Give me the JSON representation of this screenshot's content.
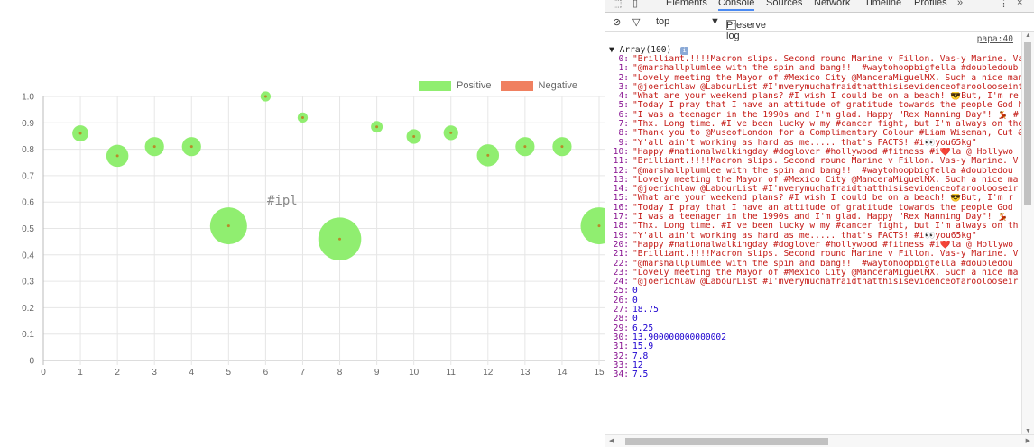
{
  "colors": {
    "positive": "#90ee70",
    "negative": "#f08060",
    "point_dot": "#b88a2a",
    "grid": "#e6e6e6",
    "annotation": "#888888"
  },
  "chart_data": {
    "type": "scatter",
    "title": "",
    "xlabel": "",
    "ylabel": "",
    "xlim": [
      0,
      15
    ],
    "ylim": [
      0,
      1.0
    ],
    "x_ticks": [
      "0",
      "1",
      "2",
      "3",
      "4",
      "5",
      "6",
      "7",
      "8",
      "9",
      "10",
      "11",
      "12",
      "13",
      "14",
      "15"
    ],
    "y_ticks": [
      "0",
      "0.1",
      "0.2",
      "0.3",
      "0.4",
      "0.5",
      "0.6",
      "0.7",
      "0.8",
      "0.9",
      "1.0"
    ],
    "grid": true,
    "legend_placement": "top-right",
    "legend": [
      {
        "name": "Positive",
        "color": "#90ee70"
      },
      {
        "name": "Negative",
        "color": "#f08060"
      }
    ],
    "annotation": {
      "text": "#ipl",
      "x": 6.45,
      "y": 0.6
    },
    "series": [
      {
        "name": "Positive",
        "points": [
          {
            "x": 1,
            "y": 0.86,
            "size": 3
          },
          {
            "x": 2,
            "y": 0.775,
            "size": 5
          },
          {
            "x": 3,
            "y": 0.81,
            "size": 4
          },
          {
            "x": 4,
            "y": 0.81,
            "size": 4
          },
          {
            "x": 5,
            "y": 0.51,
            "size": 10
          },
          {
            "x": 6,
            "y": 1.0,
            "size": 1
          },
          {
            "x": 7,
            "y": 0.92,
            "size": 1
          },
          {
            "x": 8,
            "y": 0.46,
            "size": 12
          },
          {
            "x": 9,
            "y": 0.885,
            "size": 1.5
          },
          {
            "x": 10,
            "y": 0.848,
            "size": 2.5
          },
          {
            "x": 11,
            "y": 0.862,
            "size": 2.5
          },
          {
            "x": 12,
            "y": 0.777,
            "size": 5
          },
          {
            "x": 13,
            "y": 0.81,
            "size": 4
          },
          {
            "x": 14,
            "y": 0.81,
            "size": 4
          },
          {
            "x": 15,
            "y": 0.51,
            "size": 10
          }
        ]
      },
      {
        "name": "Negative",
        "points": []
      }
    ]
  },
  "devtools": {
    "tabs": [
      "Elements",
      "Console",
      "Sources",
      "Network",
      "Timeline",
      "Profiles"
    ],
    "active_tab": "Console",
    "more_tabs_icon": "»",
    "menu_icon": "⋮",
    "close_icon": "×",
    "context_select": "top",
    "preserve_log_label": "Preserve log",
    "source_link": "papa:40",
    "array_header": "Array(100)",
    "lines": [
      {
        "i": "0:",
        "t": "\"Brilliant.!!!!Macron slips. Second round Marine v Fillon. Vas-y Marine. Va",
        "k": "str"
      },
      {
        "i": "1:",
        "t": "\"@marshallplumlee with the spin and bang!!!  #waytohoopbigfella #doubledoub",
        "k": "str"
      },
      {
        "i": "2:",
        "t": "\"Lovely meeting the Mayor of #Mexico City @ManceraMiguelMX. Such a nice man",
        "k": "str"
      },
      {
        "i": "3:",
        "t": "\"@joerichlaw @LabourList #I'mverymuchafraidthatthisisevidenceofaroolooseint",
        "k": "str"
      },
      {
        "i": "4:",
        "t": "\"What are your weekend plans? #I wish I could be on a beach! 😎But, I'm re",
        "k": "str"
      },
      {
        "i": "5:",
        "t": "\"Today I pray that I have an attitude of gratitude towards the people God h",
        "k": "str"
      },
      {
        "i": "6:",
        "t": "\"I was a teenager in the 1990s and I'm glad. Happy \"Rex Manning Day\"! 💃 #",
        "k": "str"
      },
      {
        "i": "7:",
        "t": "\"Thx. Long time. #I've been lucky w my #cancer fight, but I'm always on the",
        "k": "str"
      },
      {
        "i": "8:",
        "t": "\"Thank you to @MuseofLondon for a Complimentary Colour #Liam Wiseman, Cut &",
        "k": "str"
      },
      {
        "i": "9:",
        "t": "\"Y'all ain't working as hard as me..... that's FACTS! #i👀you65kg\"",
        "k": "str"
      },
      {
        "i": "10:",
        "t": "\"Happy #nationalwalkingday #doglover #hollywood #fitness #i❤️la @ Hollywo",
        "k": "str"
      },
      {
        "i": "11:",
        "t": "\"Brilliant.!!!!Macron slips. Second round Marine v Fillon. Vas-y Marine. V",
        "k": "str"
      },
      {
        "i": "12:",
        "t": "\"@marshallplumlee with the spin and bang!!!  #waytohoopbigfella #doubledou",
        "k": "str"
      },
      {
        "i": "13:",
        "t": "\"Lovely meeting the Mayor of #Mexico City @ManceraMiguelMX. Such a nice ma",
        "k": "str"
      },
      {
        "i": "14:",
        "t": "\"@joerichlaw @LabourList #I'mverymuchafraidthatthisisevidenceofaroolooseir",
        "k": "str"
      },
      {
        "i": "15:",
        "t": "\"What are your weekend plans? #I wish I could be on a beach! 😎But, I'm r",
        "k": "str"
      },
      {
        "i": "16:",
        "t": "\"Today I pray that I have an attitude of gratitude towards the people God",
        "k": "str"
      },
      {
        "i": "17:",
        "t": "\"I was a teenager in the 1990s and I'm glad. Happy \"Rex Manning Day\"! 💃",
        "k": "str"
      },
      {
        "i": "18:",
        "t": "\"Thx. Long time. #I've been lucky w my #cancer fight, but I'm always on th",
        "k": "str"
      },
      {
        "i": "19:",
        "t": "\"Y'all ain't working as hard as me..... that's FACTS! #i👀you65kg\"",
        "k": "str"
      },
      {
        "i": "20:",
        "t": "\"Happy #nationalwalkingday #doglover #hollywood #fitness #i❤️la @ Hollywo",
        "k": "str"
      },
      {
        "i": "21:",
        "t": "\"Brilliant.!!!!Macron slips. Second round Marine v Fillon. Vas-y Marine. V",
        "k": "str"
      },
      {
        "i": "22:",
        "t": "\"@marshallplumlee with the spin and bang!!!  #waytohoopbigfella #doubledou",
        "k": "str"
      },
      {
        "i": "23:",
        "t": "\"Lovely meeting the Mayor of #Mexico City @ManceraMiguelMX. Such a nice ma",
        "k": "str"
      },
      {
        "i": "24:",
        "t": "\"@joerichlaw @LabourList #I'mverymuchafraidthatthisisevidenceofaroolooseir",
        "k": "str"
      },
      {
        "i": "25:",
        "t": "0",
        "k": "num"
      },
      {
        "i": "26:",
        "t": "0",
        "k": "num"
      },
      {
        "i": "27:",
        "t": "18.75",
        "k": "num"
      },
      {
        "i": "28:",
        "t": "0",
        "k": "num"
      },
      {
        "i": "29:",
        "t": "6.25",
        "k": "num"
      },
      {
        "i": "30:",
        "t": "13.900000000000002",
        "k": "num"
      },
      {
        "i": "31:",
        "t": "15.9",
        "k": "num"
      },
      {
        "i": "32:",
        "t": "7.8",
        "k": "num"
      },
      {
        "i": "33:",
        "t": "12",
        "k": "num"
      },
      {
        "i": "34:",
        "t": "7.5",
        "k": "num"
      }
    ]
  }
}
